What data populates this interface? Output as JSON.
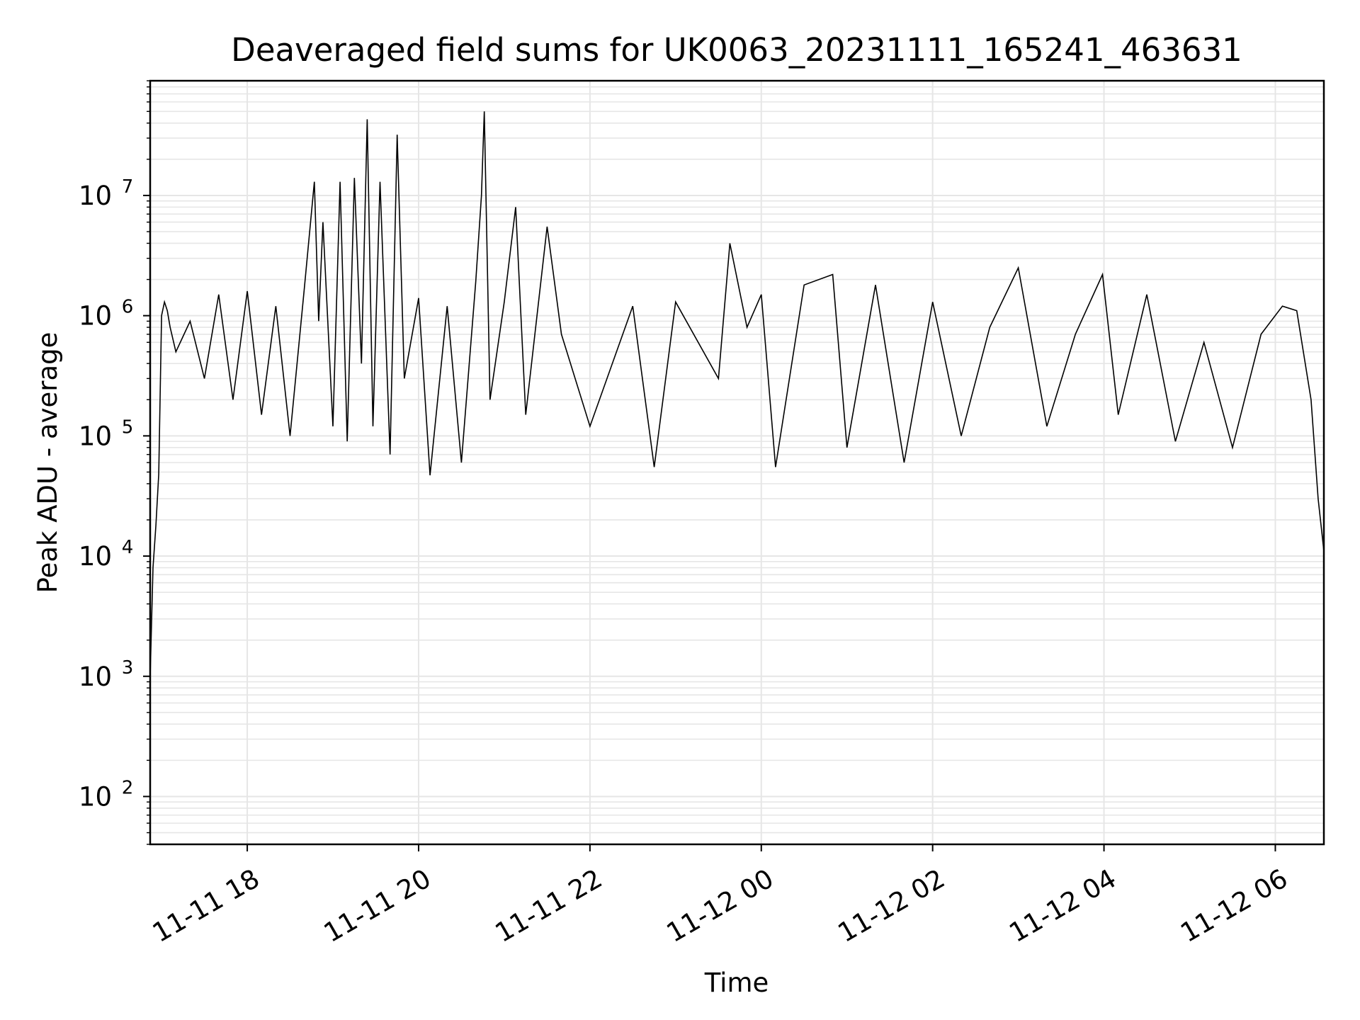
{
  "chart_data": {
    "type": "line",
    "title": "Deaveraged field sums for UK0063_20231111_165241_463631",
    "xlabel": "Time",
    "ylabel": "Peak ADU - average",
    "x_tick_labels": [
      "11-11 18",
      "11-11 20",
      "11-11 22",
      "11-12 00",
      "11-12 02",
      "11-12 04",
      "11-12 06"
    ],
    "x_ticks": [
      "2023-11-11T18:00",
      "2023-11-11T20:00",
      "2023-11-11T22:00",
      "2023-11-12T00:00",
      "2023-11-12T02:00",
      "2023-11-12T04:00",
      "2023-11-12T06:00"
    ],
    "xlim": [
      "2023-11-11T16:52",
      "2023-11-12T06:34"
    ],
    "y_scale": "log",
    "ylim": [
      40,
      90000000
    ],
    "y_ticks": [
      {
        "base": "10",
        "exp": "2",
        "value": 100
      },
      {
        "base": "10",
        "exp": "3",
        "value": 1000
      },
      {
        "base": "10",
        "exp": "4",
        "value": 10000
      },
      {
        "base": "10",
        "exp": "5",
        "value": 100000
      },
      {
        "base": "10",
        "exp": "6",
        "value": 1000000
      },
      {
        "base": "10",
        "exp": "7",
        "value": 10000000
      }
    ],
    "grid": true,
    "line_color": "#000000",
    "grid_color": "#e6e6e6",
    "series": [
      {
        "points": [
          [
            "2023-11-11T16:52",
            1000
          ],
          [
            "2023-11-11T16:54",
            8000
          ],
          [
            "2023-11-11T16:56",
            18000
          ],
          [
            "2023-11-11T16:58",
            48000
          ],
          [
            "2023-11-11T17:00",
            1000000
          ],
          [
            "2023-11-11T17:02",
            1300000
          ],
          [
            "2023-11-11T17:04",
            1100000
          ],
          [
            "2023-11-11T17:06",
            800000
          ],
          [
            "2023-11-11T17:10",
            500000
          ],
          [
            "2023-11-11T17:20",
            900000
          ],
          [
            "2023-11-11T17:30",
            300000
          ],
          [
            "2023-11-11T17:40",
            1500000
          ],
          [
            "2023-11-11T17:50",
            200000
          ],
          [
            "2023-11-11T18:00",
            1600000
          ],
          [
            "2023-11-11T18:10",
            150000
          ],
          [
            "2023-11-11T18:20",
            1200000
          ],
          [
            "2023-11-11T18:30",
            100000
          ],
          [
            "2023-11-11T18:40",
            1700000
          ],
          [
            "2023-11-11T18:47",
            13000000
          ],
          [
            "2023-11-11T18:50",
            900000
          ],
          [
            "2023-11-11T18:53",
            6000000
          ],
          [
            "2023-11-11T19:00",
            120000
          ],
          [
            "2023-11-11T19:05",
            13000000
          ],
          [
            "2023-11-11T19:10",
            90000
          ],
          [
            "2023-11-11T19:15",
            14000000
          ],
          [
            "2023-11-11T19:20",
            400000
          ],
          [
            "2023-11-11T19:24",
            43000000
          ],
          [
            "2023-11-11T19:28",
            120000
          ],
          [
            "2023-11-11T19:33",
            13000000
          ],
          [
            "2023-11-11T19:40",
            70000
          ],
          [
            "2023-11-11T19:45",
            32000000
          ],
          [
            "2023-11-11T19:50",
            300000
          ],
          [
            "2023-11-11T20:00",
            1400000
          ],
          [
            "2023-11-11T20:08",
            47000
          ],
          [
            "2023-11-11T20:20",
            1200000
          ],
          [
            "2023-11-11T20:30",
            60000
          ],
          [
            "2023-11-11T20:40",
            1900000
          ],
          [
            "2023-11-11T20:44",
            10000000
          ],
          [
            "2023-11-11T20:46",
            50000000
          ],
          [
            "2023-11-11T20:50",
            200000
          ],
          [
            "2023-11-11T21:00",
            1300000
          ],
          [
            "2023-11-11T21:08",
            8000000
          ],
          [
            "2023-11-11T21:15",
            150000
          ],
          [
            "2023-11-11T21:30",
            5500000
          ],
          [
            "2023-11-11T21:40",
            700000
          ],
          [
            "2023-11-11T22:00",
            120000
          ],
          [
            "2023-11-11T22:30",
            1200000
          ],
          [
            "2023-11-11T22:45",
            55000
          ],
          [
            "2023-11-11T23:00",
            1300000
          ],
          [
            "2023-11-11T23:30",
            300000
          ],
          [
            "2023-11-11T23:38",
            4000000
          ],
          [
            "2023-11-11T23:50",
            800000
          ],
          [
            "2023-11-12T00:00",
            1500000
          ],
          [
            "2023-11-12T00:10",
            55000
          ],
          [
            "2023-11-12T00:30",
            1800000
          ],
          [
            "2023-11-12T00:50",
            2200000
          ],
          [
            "2023-11-12T01:00",
            80000
          ],
          [
            "2023-11-12T01:20",
            1800000
          ],
          [
            "2023-11-12T01:40",
            60000
          ],
          [
            "2023-11-12T02:00",
            1300000
          ],
          [
            "2023-11-12T02:20",
            100000
          ],
          [
            "2023-11-12T02:40",
            800000
          ],
          [
            "2023-11-12T03:00",
            2500000
          ],
          [
            "2023-11-12T03:20",
            120000
          ],
          [
            "2023-11-12T03:40",
            700000
          ],
          [
            "2023-11-12T03:59",
            2200000
          ],
          [
            "2023-11-12T04:10",
            150000
          ],
          [
            "2023-11-12T04:30",
            1500000
          ],
          [
            "2023-11-12T04:50",
            90000
          ],
          [
            "2023-11-12T05:10",
            600000
          ],
          [
            "2023-11-12T05:30",
            80000
          ],
          [
            "2023-11-12T05:50",
            700000
          ],
          [
            "2023-11-12T06:05",
            1200000
          ],
          [
            "2023-11-12T06:15",
            1100000
          ],
          [
            "2023-11-12T06:25",
            200000
          ],
          [
            "2023-11-12T06:30",
            30000
          ],
          [
            "2023-11-12T06:34",
            11000
          ]
        ]
      }
    ]
  }
}
